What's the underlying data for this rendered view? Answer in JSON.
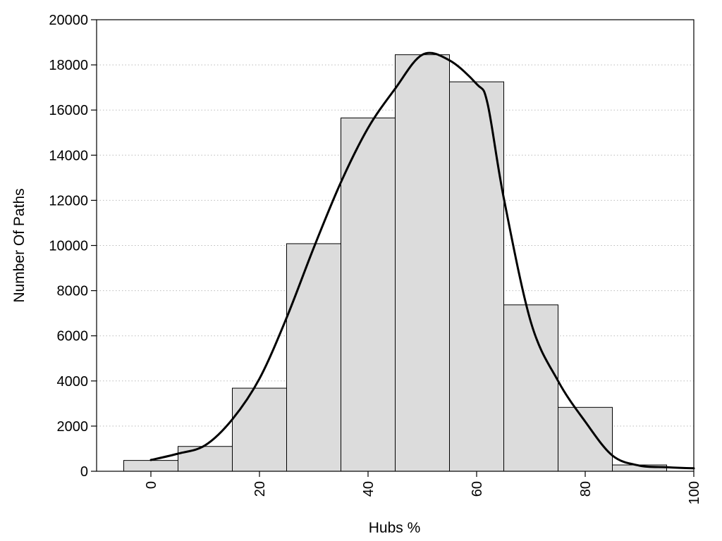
{
  "chart_data": {
    "type": "bar",
    "title": "",
    "xlabel": "Hubs %",
    "ylabel": "Number Of Paths",
    "xlim": [
      -10,
      100
    ],
    "ylim": [
      0,
      20000
    ],
    "grid": {
      "y": true,
      "x": false,
      "style": "dotted"
    },
    "legend": "none",
    "x_ticks": [
      0,
      20,
      40,
      60,
      80,
      100
    ],
    "y_ticks": [
      0,
      2000,
      4000,
      6000,
      8000,
      10000,
      12000,
      14000,
      16000,
      18000,
      20000
    ],
    "x_tick_labels": [
      "0",
      "20",
      "40",
      "60",
      "80",
      "100"
    ],
    "y_tick_labels": [
      "0",
      "2000",
      "4000",
      "6000",
      "8000",
      "10000",
      "12000",
      "14000",
      "16000",
      "18000",
      "20000"
    ],
    "bin_width": 10,
    "bins": [
      0,
      10,
      20,
      30,
      40,
      50,
      60,
      70,
      80,
      90
    ],
    "values": [
      480,
      1100,
      3680,
      10080,
      15650,
      18450,
      17250,
      7370,
      2830,
      280
    ],
    "curve": {
      "x": [
        0,
        5,
        10,
        15,
        20,
        25,
        30,
        35,
        40,
        45,
        50,
        55,
        60,
        62,
        65,
        70,
        75,
        80,
        85,
        90,
        95,
        100
      ],
      "y": [
        500,
        780,
        1150,
        2300,
        4100,
        6800,
        9900,
        12800,
        15200,
        16950,
        18450,
        18200,
        17150,
        16300,
        12100,
        6600,
        4000,
        2200,
        700,
        250,
        180,
        130
      ]
    },
    "colors": {
      "bar_fill": "#dcdcdc",
      "bar_stroke": "#000000",
      "curve": "#000000",
      "grid": "#bbbbbb"
    }
  }
}
